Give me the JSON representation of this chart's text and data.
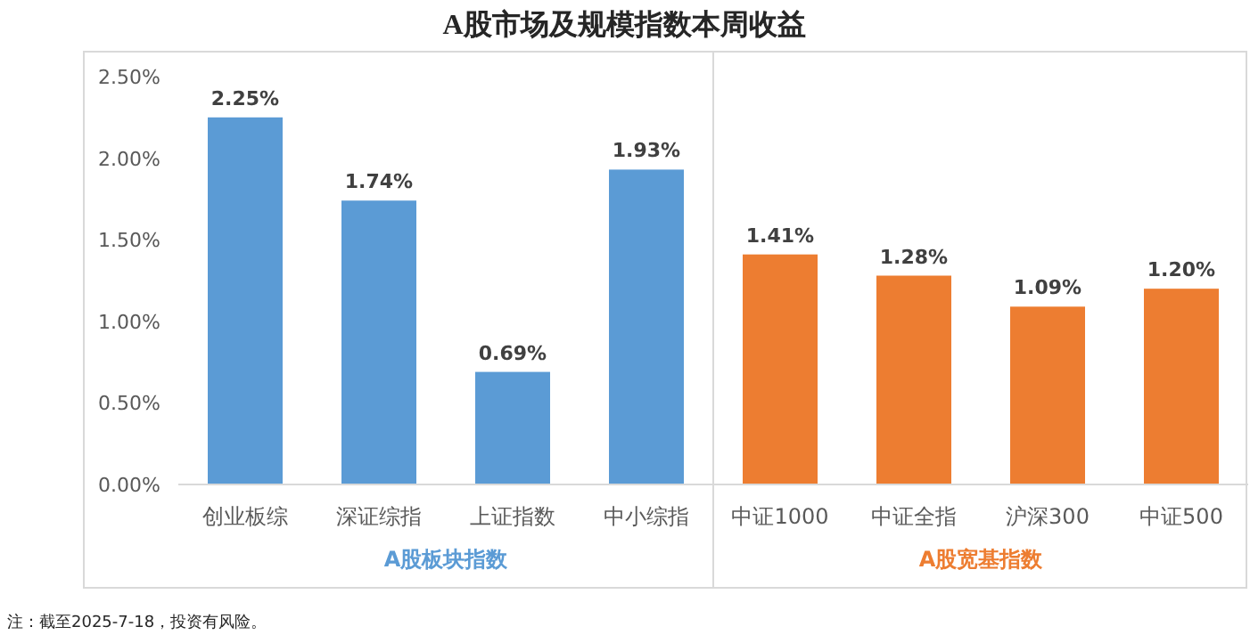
{
  "chart_data": {
    "type": "bar",
    "title": "A股市场及规模指数本周收益",
    "categories": [
      "创业板综",
      "深证综指",
      "上证指数",
      "中小综指",
      "中证1000",
      "中证全指",
      "沪深300",
      "中证500"
    ],
    "series": [
      {
        "name": "A股板块指数",
        "color": "#5b9bd5",
        "values": [
          2.25,
          1.74,
          0.69,
          1.93,
          null,
          null,
          null,
          null
        ],
        "value_labels": [
          "2.25%",
          "1.74%",
          "0.69%",
          "1.93%",
          null,
          null,
          null,
          null
        ]
      },
      {
        "name": "A股宽基指数",
        "color": "#ed7d31",
        "values": [
          null,
          null,
          null,
          null,
          1.41,
          1.28,
          1.09,
          1.2
        ],
        "value_labels": [
          null,
          null,
          null,
          null,
          "1.41%",
          "1.28%",
          "1.09%",
          "1.20%"
        ]
      }
    ],
    "ylim": [
      0,
      2.5
    ],
    "yticks": [
      {
        "value": 0,
        "label": "0.00%"
      },
      {
        "value": 0.5,
        "label": "0.50%"
      },
      {
        "value": 1,
        "label": "1.00%"
      },
      {
        "value": 1.5,
        "label": "1.50%"
      },
      {
        "value": 2,
        "label": "2.00%"
      },
      {
        "value": 2.5,
        "label": "2.50%"
      }
    ],
    "annotations": [
      "注：截至2025-7-18，投资有风险。"
    ]
  }
}
